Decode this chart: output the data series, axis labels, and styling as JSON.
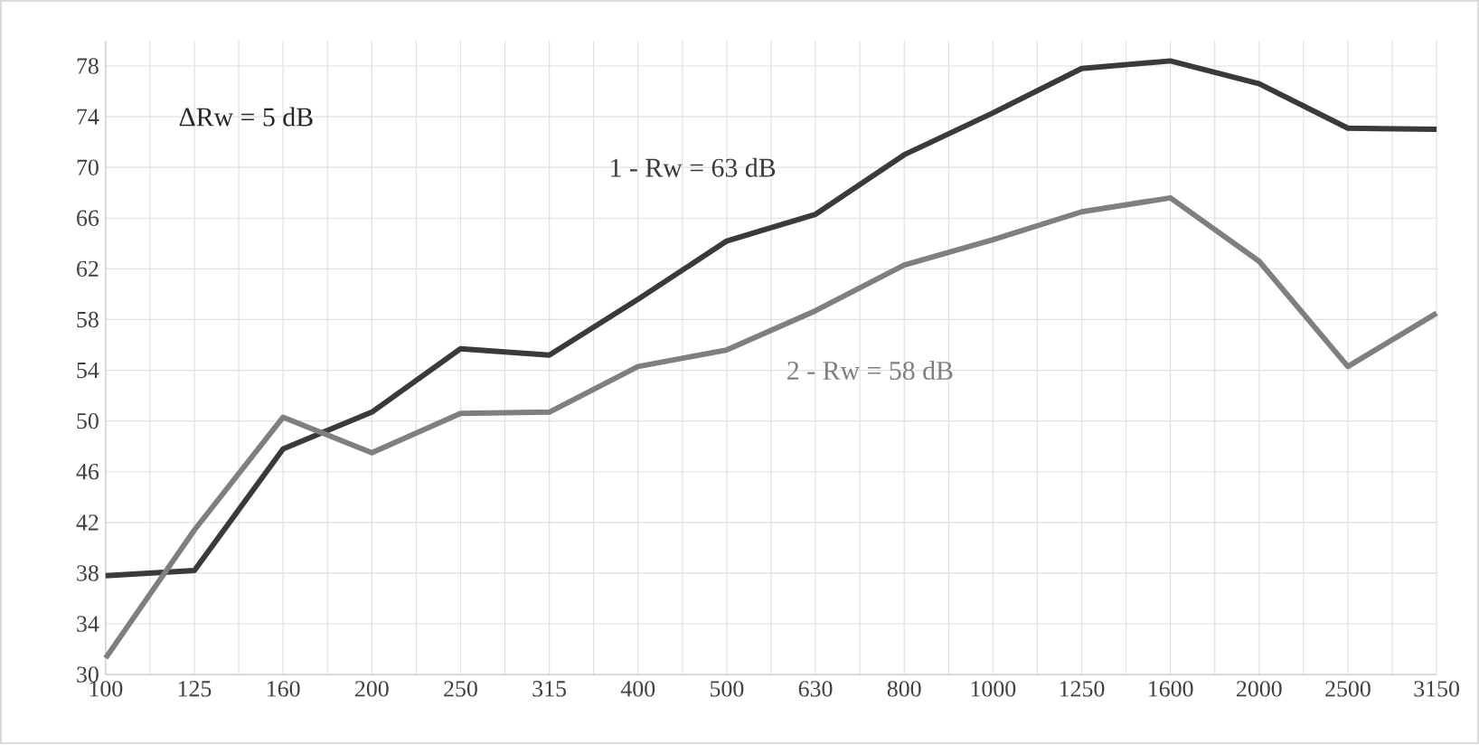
{
  "chart_data": {
    "type": "line",
    "categories": [
      "100",
      "125",
      "160",
      "200",
      "250",
      "315",
      "400",
      "500",
      "630",
      "800",
      "1000",
      "1250",
      "1600",
      "2000",
      "2500",
      "3150"
    ],
    "series": [
      {
        "name": "1 - Rw = 63 dB",
        "color": "#3a3a3a",
        "values": [
          37.8,
          38.2,
          47.8,
          50.7,
          55.7,
          55.2,
          59.6,
          64.2,
          66.3,
          71,
          74.3,
          77.8,
          78.4,
          76.6,
          73.1,
          73
        ]
      },
      {
        "name": "2 - Rw = 58 dB",
        "color": "#7f7f7f",
        "values": [
          31.3,
          41.4,
          50.3,
          47.5,
          50.6,
          50.7,
          54.3,
          55.6,
          58.7,
          62.3,
          64.3,
          66.5,
          67.6,
          62.6,
          54.3,
          58.5
        ]
      }
    ],
    "annotations": [
      "ΔRw = 5 dB"
    ],
    "ylim": [
      30,
      80
    ],
    "yticks": [
      30,
      34,
      38,
      42,
      46,
      50,
      54,
      58,
      62,
      66,
      70,
      74,
      78
    ],
    "grid": true,
    "legend": false,
    "marker": "none",
    "line_style": "solid"
  }
}
